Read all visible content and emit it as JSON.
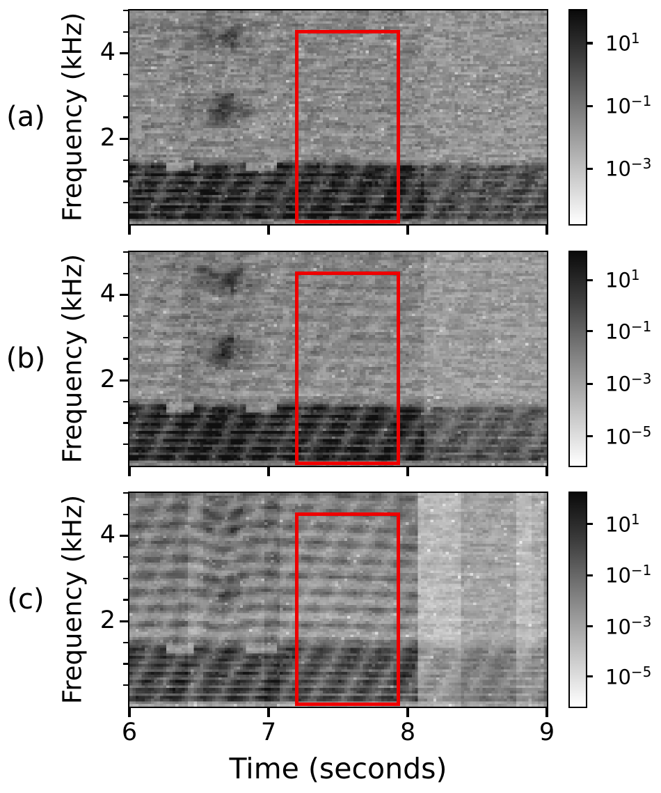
{
  "figure": {
    "background": "#ffffff",
    "axis_color": "#000000",
    "highlight_color": "#ee0000",
    "xlabel": "Time (seconds)",
    "ylabel": "Frequency (kHz)",
    "panel_labels": [
      "(a)",
      "(b)",
      "(c)"
    ],
    "xtick_labels": [
      "6",
      "7",
      "8",
      "9"
    ],
    "colormap": "Greys (darker = higher power, log scale)"
  },
  "chart_data": [
    {
      "type": "heatmap",
      "subtype": "spectrogram",
      "panel": "(a)",
      "xlabel": "Time (seconds)",
      "ylabel": "Frequency (kHz)",
      "x_range_seconds": [
        6,
        9
      ],
      "y_range_khz": [
        0,
        5
      ],
      "xticks": [
        6,
        7,
        8,
        9
      ],
      "yticks_major": [
        2,
        4
      ],
      "yticks_minor": [
        0.5,
        1,
        1.5,
        2.5,
        3,
        3.5,
        4.5,
        5
      ],
      "colorbar": {
        "scale": "log",
        "ticks": [
          {
            "base": "10",
            "exp": "1",
            "frac": 0.153
          },
          {
            "base": "10",
            "exp": "−1",
            "frac": 0.447
          },
          {
            "base": "10",
            "exp": "−3",
            "frac": 0.741
          }
        ]
      },
      "highlight_box": {
        "t_seconds": [
          7.2,
          7.93
        ],
        "f_khz": [
          0.06,
          4.5
        ]
      },
      "render": {
        "seed": 5,
        "base": 0.37,
        "noise": 0.085,
        "low_band_boost": 0.13,
        "low_band_scale": 0.55,
        "fundamental_khz": 0.191,
        "amp_low": 0.42,
        "amp_even": 0.1,
        "amp_odd": 0.05,
        "ornament_boost": 0.17,
        "fade_t": 8.12,
        "fade_amp": 0.45,
        "columns": [
          [
            6.38,
            6.47,
            0.05
          ],
          [
            6.47,
            6.95,
            0.015
          ],
          [
            8.12,
            9.0,
            0.01
          ]
        ]
      }
    },
    {
      "type": "heatmap",
      "subtype": "spectrogram",
      "panel": "(b)",
      "xlabel": "Time (seconds)",
      "ylabel": "Frequency (kHz)",
      "x_range_seconds": [
        6,
        9
      ],
      "y_range_khz": [
        0,
        5
      ],
      "xticks": [
        6,
        7,
        8,
        9
      ],
      "yticks_major": [
        2,
        4
      ],
      "yticks_minor": [
        0.5,
        1,
        1.5,
        2.5,
        3,
        3.5,
        4.5,
        5
      ],
      "colorbar": {
        "scale": "log",
        "ticks": [
          {
            "base": "10",
            "exp": "1",
            "frac": 0.131
          },
          {
            "base": "10",
            "exp": "−1",
            "frac": 0.37
          },
          {
            "base": "10",
            "exp": "−3",
            "frac": 0.616
          },
          {
            "base": "10",
            "exp": "−5",
            "frac": 0.862
          }
        ]
      },
      "highlight_box": {
        "t_seconds": [
          7.2,
          7.93
        ],
        "f_khz": [
          0.06,
          4.5
        ]
      },
      "render": {
        "seed": 11,
        "base": 0.34,
        "noise": 0.075,
        "low_band_boost": 0.13,
        "low_band_scale": 0.55,
        "fundamental_khz": 0.191,
        "amp_low": 0.46,
        "amp_even": 0.14,
        "amp_odd": 0.06,
        "ornament_boost": 0.19,
        "fade_t": 8.12,
        "fade_amp": 0.4,
        "columns": [
          [
            6.38,
            6.5,
            0.06
          ],
          [
            6.5,
            6.95,
            0.02
          ]
        ]
      }
    },
    {
      "type": "heatmap",
      "subtype": "spectrogram",
      "panel": "(c)",
      "xlabel": "Time (seconds)",
      "ylabel": "Frequency (kHz)",
      "x_range_seconds": [
        6,
        9
      ],
      "y_range_khz": [
        0,
        5
      ],
      "xticks": [
        6,
        7,
        8,
        9
      ],
      "yticks_major": [
        2,
        4
      ],
      "yticks_minor": [
        0.5,
        1,
        1.5,
        2.5,
        3,
        3.5,
        4.5,
        5
      ],
      "colorbar": {
        "scale": "log",
        "ticks": [
          {
            "base": "10",
            "exp": "1",
            "frac": 0.145
          },
          {
            "base": "10",
            "exp": "−1",
            "frac": 0.385
          },
          {
            "base": "10",
            "exp": "−3",
            "frac": 0.625
          },
          {
            "base": "10",
            "exp": "−5",
            "frac": 0.859
          }
        ]
      },
      "highlight_box": {
        "t_seconds": [
          7.2,
          7.93
        ],
        "f_khz": [
          0.06,
          4.5
        ]
      },
      "render": {
        "seed": 23,
        "base": 0.26,
        "noise": 0.058,
        "low_band_boost": 0.08,
        "low_band_scale": 0.4,
        "fundamental_khz": 0.191,
        "amp_low": 0.45,
        "amp_even": 0.28,
        "amp_odd": 0.08,
        "ornament_boost": 0.1,
        "fade_t": 8.08,
        "fade_amp": 0.3,
        "columns": [
          [
            6.0,
            6.3,
            0.02
          ],
          [
            6.3,
            6.43,
            0.06
          ],
          [
            6.43,
            6.53,
            -0.04
          ],
          [
            6.53,
            6.95,
            0.01
          ],
          [
            6.96,
            7.07,
            0.06
          ],
          [
            7.07,
            7.2,
            -0.02
          ],
          [
            7.2,
            7.9,
            -0.03
          ],
          [
            8.08,
            8.38,
            -0.06
          ],
          [
            8.38,
            8.78,
            0.03
          ],
          [
            8.78,
            8.9,
            -0.07
          ],
          [
            8.9,
            8.97,
            -0.02
          ],
          [
            8.97,
            9.0,
            0.09
          ]
        ]
      }
    }
  ]
}
